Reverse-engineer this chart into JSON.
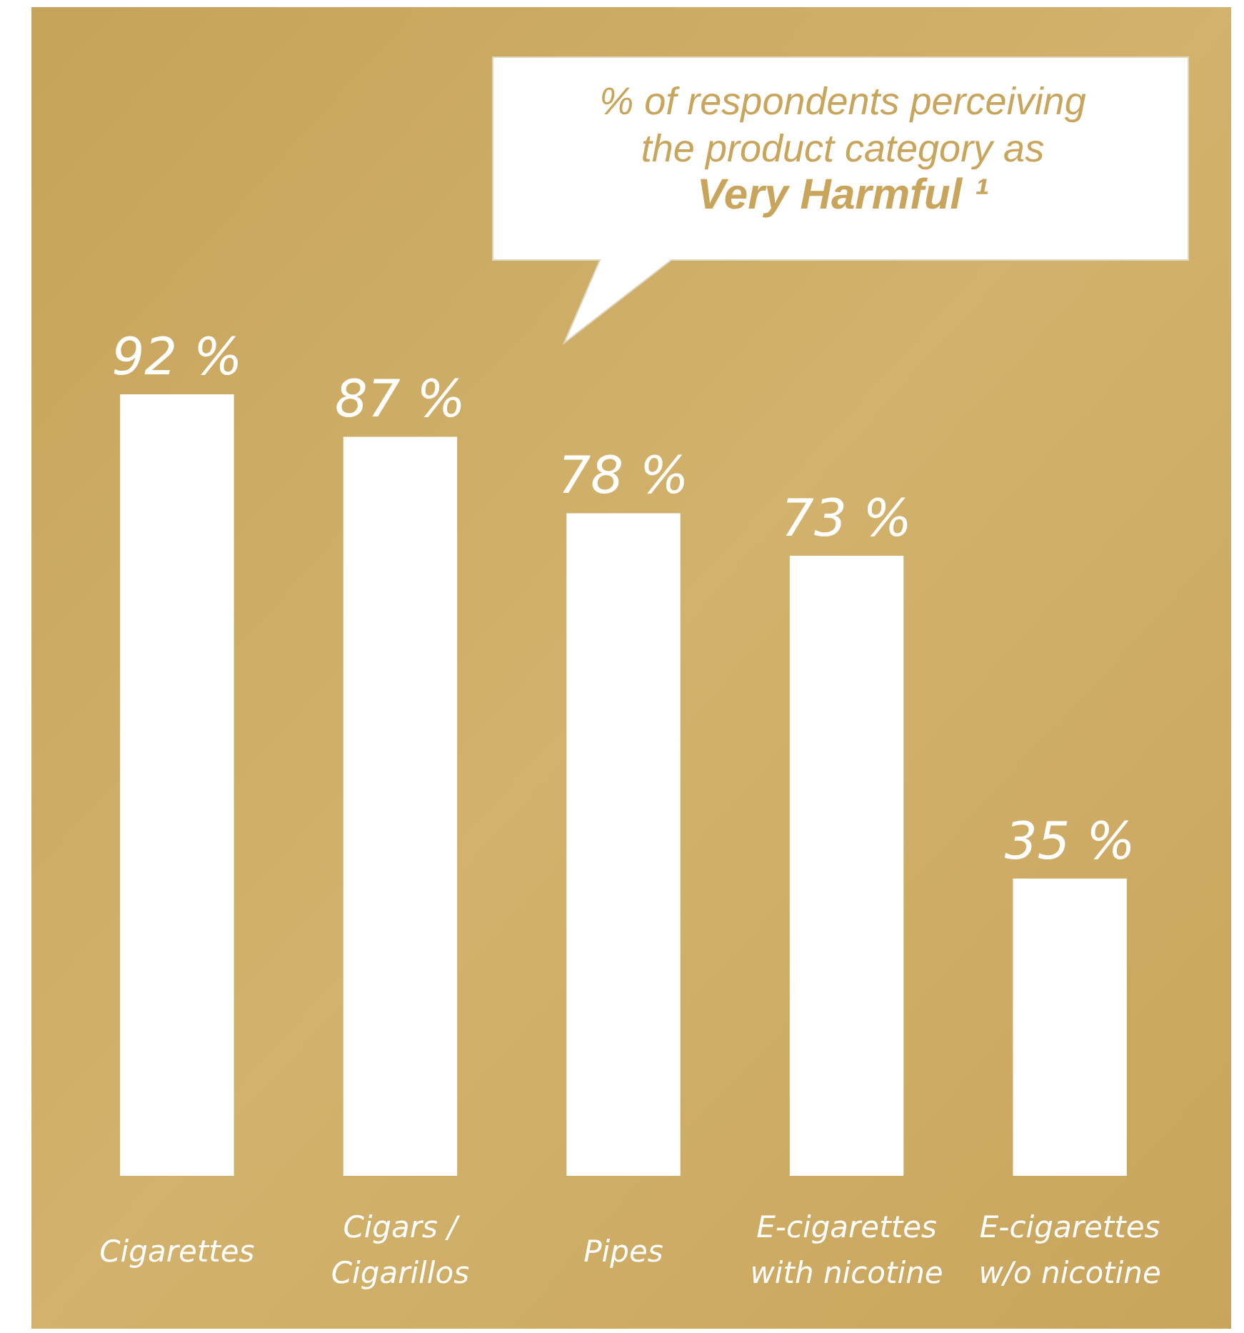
{
  "chart_data": {
    "type": "bar",
    "title": "% of respondents perceiving the product category as Very Harmful ¹",
    "categories": [
      "Cigarettes",
      "Cigars / Cigarillos",
      "Pipes",
      "E-cigarettes with nicotine",
      "E-cigarettes w/o nicotine"
    ],
    "values": [
      92,
      87,
      78,
      73,
      35
    ],
    "value_labels": [
      "92 %",
      "87 %",
      "78 %",
      "73 %",
      "35 %"
    ],
    "color": "#ffffff"
  }
}
